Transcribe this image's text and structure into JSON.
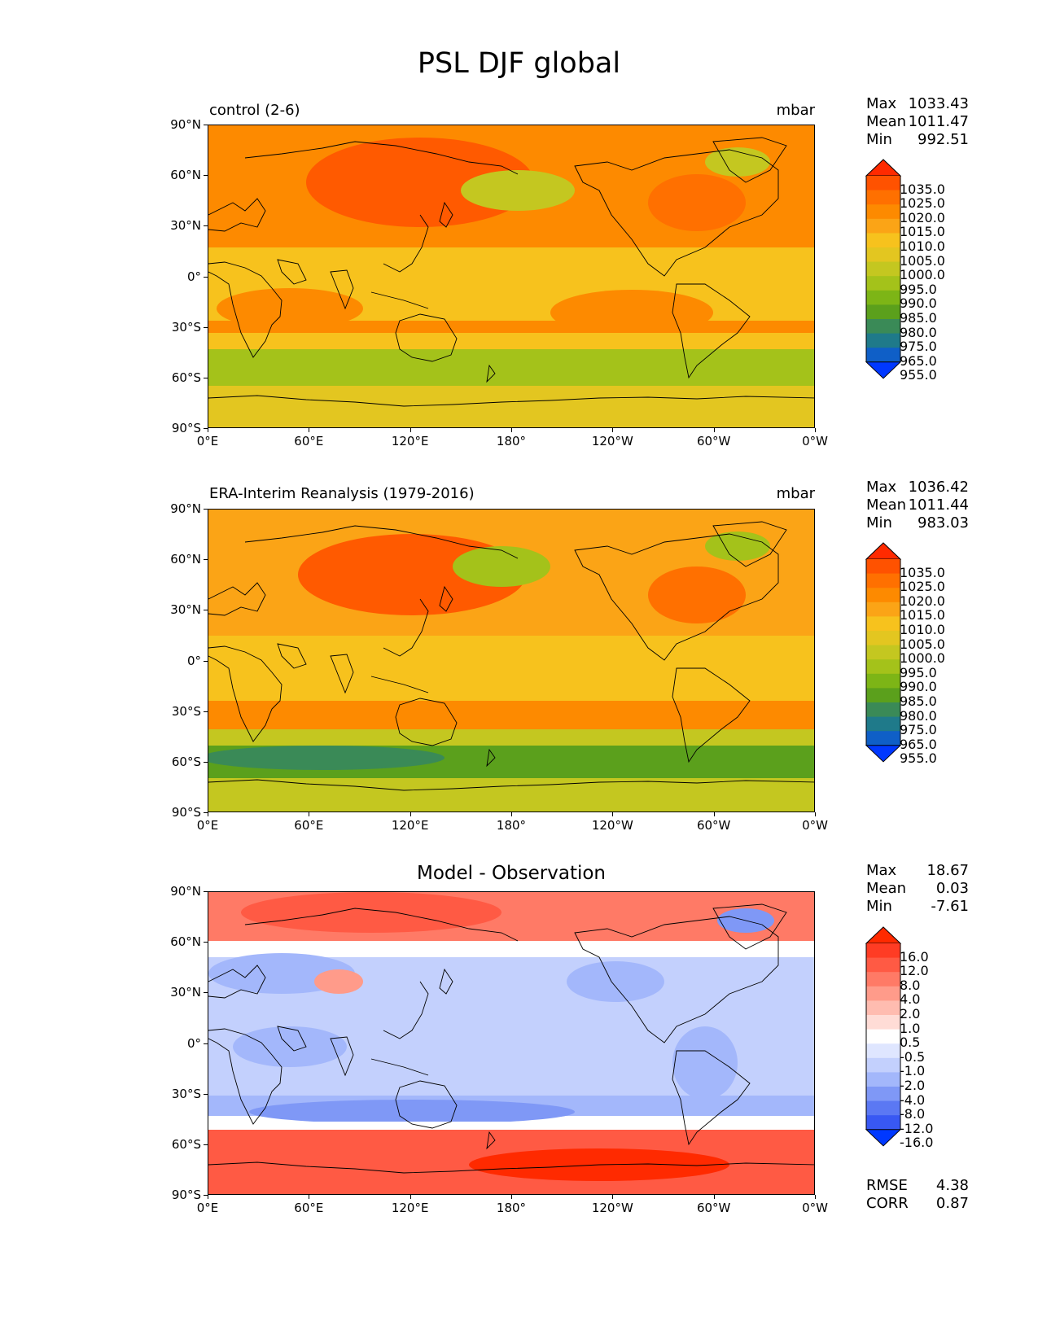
{
  "figure": {
    "title": "PSL DJF global"
  },
  "lat_ticks": [
    "90°N",
    "60°N",
    "30°N",
    "0°",
    "30°S",
    "60°S",
    "90°S"
  ],
  "lon_ticks": [
    "0°E",
    "60°E",
    "120°E",
    "180°",
    "120°W",
    "60°W",
    "0°W"
  ],
  "panels": [
    {
      "left_label": "control (2-6)",
      "right_label": "mbar",
      "center_label": "",
      "stats": [
        {
          "name": "Max",
          "value": "1033.43"
        },
        {
          "name": "Mean",
          "value": "1011.47"
        },
        {
          "name": "Min",
          "value": "992.51"
        }
      ],
      "colorbar_levels": [
        "1035.0",
        "1025.0",
        "1020.0",
        "1015.0",
        "1010.0",
        "1005.0",
        "1000.0",
        "995.0",
        "990.0",
        "985.0",
        "980.0",
        "975.0",
        "965.0",
        "955.0"
      ],
      "colorbar_colors": [
        "#ff2a00",
        "#ff5200",
        "#ff7000",
        "#fd8a00",
        "#fba416",
        "#f7c21d",
        "#e3c620",
        "#c4c720",
        "#a4c21a",
        "#7db516",
        "#5ba01c",
        "#3a8a57",
        "#1f7a8a",
        "#0f5fc7",
        "#0038ff"
      ],
      "fill_scheme": "control"
    },
    {
      "left_label": "ERA-Interim Reanalysis (1979-2016)",
      "right_label": "mbar",
      "center_label": "",
      "stats": [
        {
          "name": "Max",
          "value": "1036.42"
        },
        {
          "name": "Mean",
          "value": "1011.44"
        },
        {
          "name": "Min",
          "value": "983.03"
        }
      ],
      "colorbar_levels": [
        "1035.0",
        "1025.0",
        "1020.0",
        "1015.0",
        "1010.0",
        "1005.0",
        "1000.0",
        "995.0",
        "990.0",
        "985.0",
        "980.0",
        "975.0",
        "965.0",
        "955.0"
      ],
      "colorbar_colors": [
        "#ff2a00",
        "#ff5200",
        "#ff7000",
        "#fd8a00",
        "#fba416",
        "#f7c21d",
        "#e3c620",
        "#c4c720",
        "#a4c21a",
        "#7db516",
        "#5ba01c",
        "#3a8a57",
        "#1f7a8a",
        "#0f5fc7",
        "#0038ff"
      ],
      "fill_scheme": "era"
    },
    {
      "left_label": "",
      "right_label": "",
      "center_label": "Model - Observation",
      "stats": [
        {
          "name": "Max",
          "value": "18.67"
        },
        {
          "name": "Mean",
          "value": "0.03"
        },
        {
          "name": "Min",
          "value": "-7.61"
        }
      ],
      "extra_stats": [
        {
          "name": "RMSE",
          "value": "4.38"
        },
        {
          "name": "CORR",
          "value": "0.87"
        }
      ],
      "colorbar_levels": [
        "16.0",
        "12.0",
        "8.0",
        "4.0",
        "2.0",
        "1.0",
        "0.5",
        "-0.5",
        "-1.0",
        "-2.0",
        "-4.0",
        "-8.0",
        "-12.0",
        "-16.0"
      ],
      "colorbar_colors": [
        "#ff2a00",
        "#ff3c24",
        "#ff5a44",
        "#ff7a66",
        "#ff9b8a",
        "#ffbcb0",
        "#ffdcd6",
        "#ffffff",
        "#dfe6ff",
        "#c3d0fd",
        "#a3b7fb",
        "#7f98f6",
        "#5b78f3",
        "#3858f3",
        "#0038ff"
      ],
      "fill_scheme": "diff"
    }
  ]
}
